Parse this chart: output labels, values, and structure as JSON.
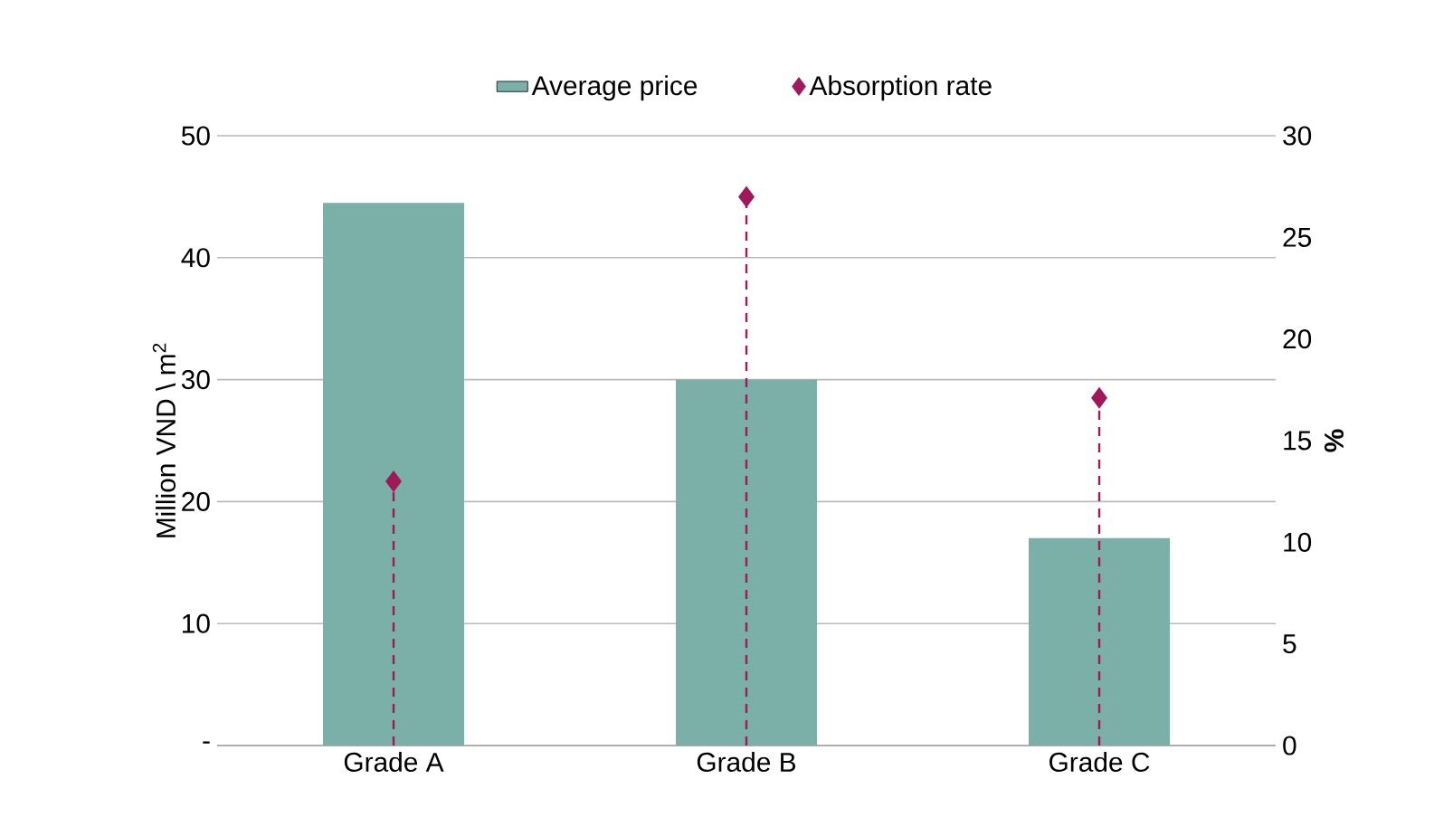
{
  "chart_data": {
    "type": "bar",
    "categories": [
      "Grade A",
      "Grade B",
      "Grade C"
    ],
    "series": [
      {
        "name": "Average price",
        "color": "#7ab0a8",
        "values": [
          44.5,
          30,
          17
        ]
      },
      {
        "name": "Absorption rate",
        "type": "lollipop",
        "axis": "y2",
        "color": "#a0195a",
        "values": [
          13,
          27,
          17.1
        ],
        "marker": "diamond",
        "line_style": "dashed"
      }
    ],
    "ylabel": "Million VND \\ m$^{2}$",
    "y2label": "%",
    "ylim": [
      0,
      50
    ],
    "yticks": [
      {
        "value": 0,
        "label": "-"
      },
      10,
      20,
      30,
      40,
      50
    ],
    "y2lim": [
      0,
      30
    ],
    "y2ticks": [
      0,
      5,
      10,
      15,
      20,
      25,
      30
    ],
    "grid": "y",
    "legend": "top"
  }
}
